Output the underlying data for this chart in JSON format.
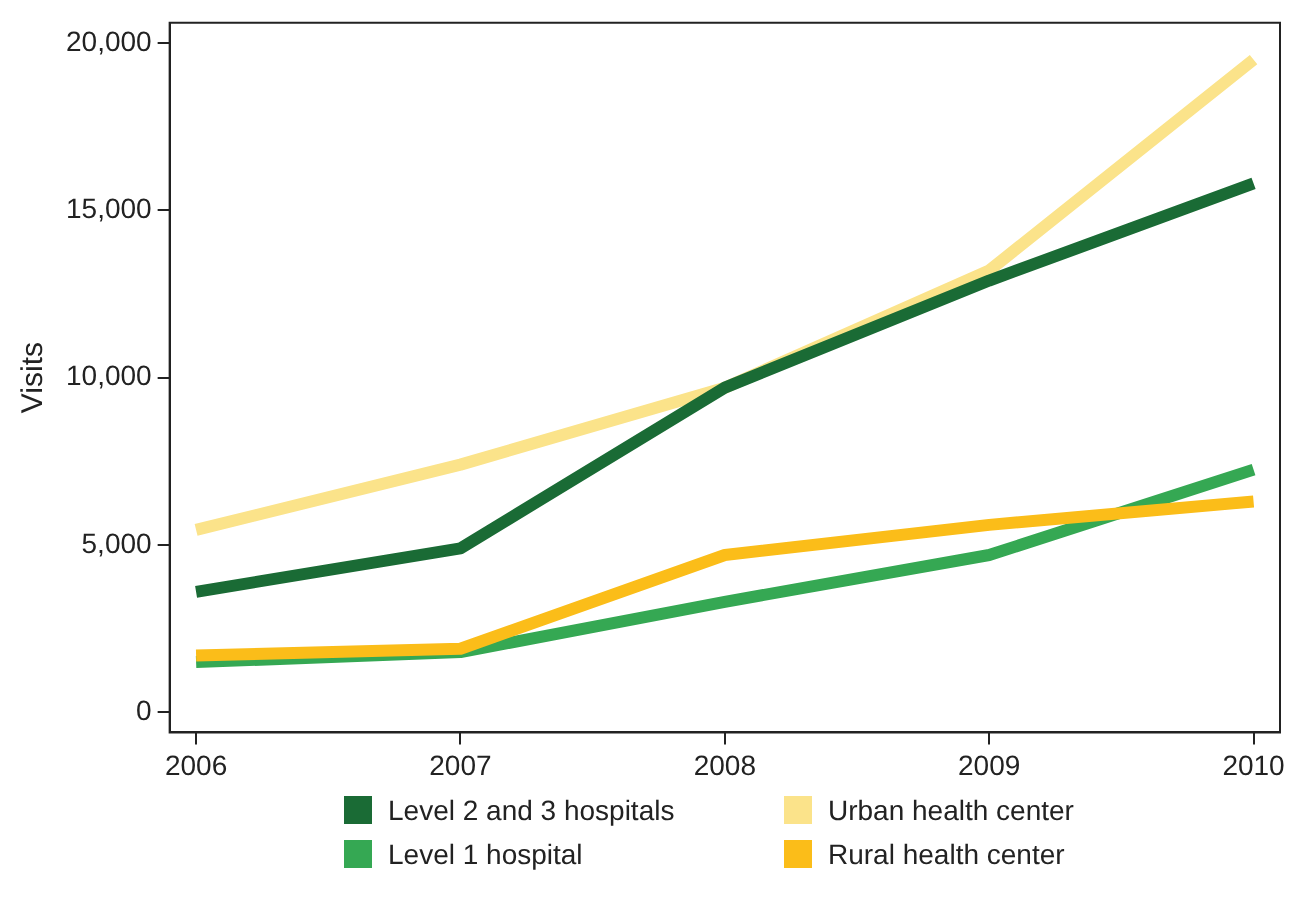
{
  "chart_data": {
    "type": "line",
    "ylabel": "Visits",
    "x": [
      2006,
      2007,
      2008,
      2009,
      2010
    ],
    "xlim": [
      2005.9,
      2010.1
    ],
    "xticks": [
      2006,
      2007,
      2008,
      2009,
      2010
    ],
    "ylim": [
      -600,
      20600
    ],
    "yticks": [
      {
        "value": 0,
        "label": "0"
      },
      {
        "value": 5000,
        "label": "5,000"
      },
      {
        "value": 10000,
        "label": "10,000"
      },
      {
        "value": 15000,
        "label": "15,000"
      },
      {
        "value": 20000,
        "label": "20,000"
      }
    ],
    "grid": false,
    "legend": "bottom",
    "marker": "none",
    "line_style": "solid",
    "series": [
      {
        "name": "Level 2 and 3 hospitals",
        "color": "#1a6b35",
        "values": [
          3600,
          4900,
          9700,
          12900,
          15800
        ]
      },
      {
        "name": "Urban health center",
        "color": "#fbe38a",
        "values": [
          5450,
          7400,
          9700,
          13200,
          19500
        ]
      },
      {
        "name": "Level 1 hospital",
        "color": "#35a853",
        "values": [
          1500,
          1800,
          3300,
          4700,
          7250
        ]
      },
      {
        "name": "Rural health center",
        "color": "#fbbd19",
        "values": [
          1700,
          1900,
          4700,
          5600,
          6300
        ]
      }
    ]
  }
}
